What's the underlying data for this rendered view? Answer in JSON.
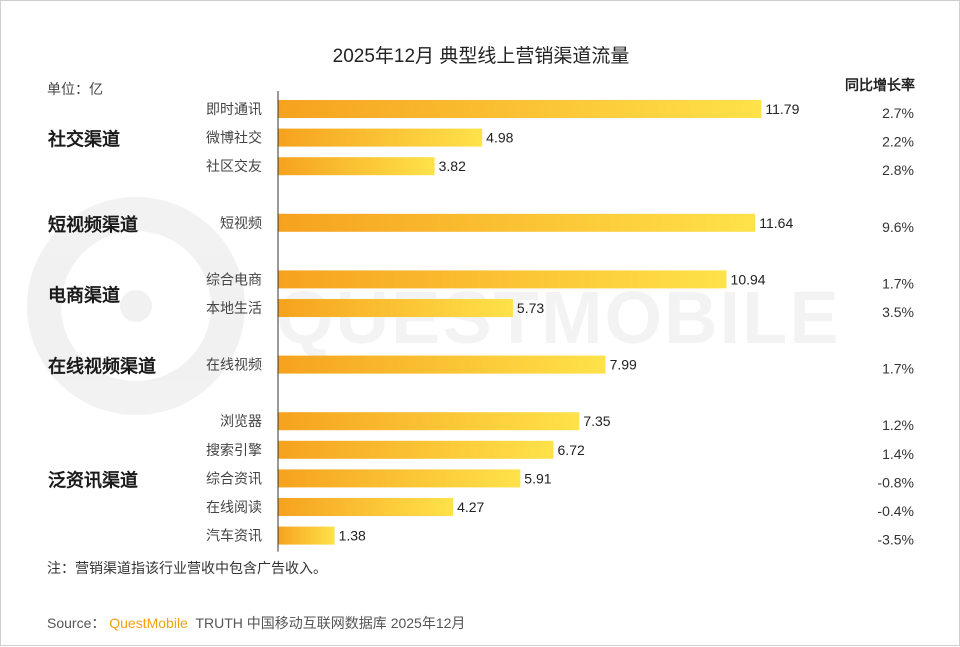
{
  "colors": {
    "bar_start": "#f6a21e",
    "bar_end": "#ffe24a",
    "axis": "#333333",
    "brand": "#f0a010"
  },
  "title": "2025年12月 典型线上营销渠道流量",
  "unit_label": "单位：亿",
  "growth_header": "同比增长率",
  "watermark": "QUESTMOBILE",
  "note": "注：营销渠道指该行业营收中包含广告收入。",
  "source": {
    "prefix": "Source：",
    "brand": "QuestMobile",
    "rest": "TRUTH 中国移动互联网数据库 2025年12月"
  },
  "chart_data": {
    "type": "bar",
    "orientation": "horizontal",
    "title": "2025年12月 典型线上营销渠道流量",
    "unit": "亿",
    "xlim": [
      0,
      13
    ],
    "groups": [
      {
        "name": "社交渠道",
        "items": [
          {
            "label": "即时通讯",
            "value": 11.79,
            "value_label": "11.79",
            "growth": "2.7%"
          },
          {
            "label": "微博社交",
            "value": 4.98,
            "value_label": "4.98",
            "growth": "2.2%"
          },
          {
            "label": "社区交友",
            "value": 3.82,
            "value_label": "3.82",
            "growth": "2.8%"
          }
        ]
      },
      {
        "name": "短视频渠道",
        "items": [
          {
            "label": "短视频",
            "value": 11.64,
            "value_label": "11.64",
            "growth": "9.6%"
          }
        ]
      },
      {
        "name": "电商渠道",
        "items": [
          {
            "label": "综合电商",
            "value": 10.94,
            "value_label": "10.94",
            "growth": "1.7%"
          },
          {
            "label": "本地生活",
            "value": 5.73,
            "value_label": "5.73",
            "growth": "3.5%"
          }
        ]
      },
      {
        "name": "在线视频渠道",
        "items": [
          {
            "label": "在线视频",
            "value": 7.99,
            "value_label": "7.99",
            "growth": "1.7%"
          }
        ]
      },
      {
        "name": "泛资讯渠道",
        "items": [
          {
            "label": "浏览器",
            "value": 7.35,
            "value_label": "7.35",
            "growth": "1.2%"
          },
          {
            "label": "搜索引擎",
            "value": 6.72,
            "value_label": "6.72",
            "growth": "1.4%"
          },
          {
            "label": "综合资讯",
            "value": 5.91,
            "value_label": "5.91",
            "growth": "-0.8%"
          },
          {
            "label": "在线阅读",
            "value": 4.27,
            "value_label": "4.27",
            "growth": "-0.4%"
          },
          {
            "label": "汽车资讯",
            "value": 1.38,
            "value_label": "1.38",
            "growth": "-3.5%"
          }
        ]
      }
    ]
  }
}
